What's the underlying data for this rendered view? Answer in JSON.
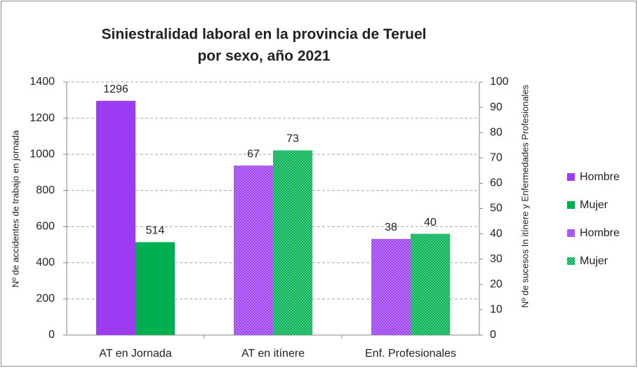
{
  "chart_data": {
    "type": "bar",
    "title": [
      "Siniestralidad laboral en la provincia de Teruel",
      "por sexo, año 2021"
    ],
    "y_label": "Nº de accidentes de trabajo en jornada",
    "y2_label": "Nº de sucesos In itínere y Enfermedades Profesionales",
    "categories": [
      "AT en Jornada",
      "AT en itínere",
      "Enf. Profesionales"
    ],
    "series": [
      {
        "name": "Hombre",
        "color": "#9b3cf2",
        "values": [
          1296,
          null,
          null
        ]
      },
      {
        "name": "Mujer",
        "color": "#00b050",
        "values": [
          514,
          null,
          null
        ]
      },
      {
        "name": "Hombre",
        "color": "#9b3cf2",
        "axis": "y2",
        "pattern": "dots",
        "values": [
          null,
          67,
          38
        ]
      },
      {
        "name": "Mujer",
        "color": "#00b050",
        "axis": "y2",
        "pattern": "dots",
        "values": [
          null,
          73,
          40
        ]
      }
    ],
    "ylim": [
      0,
      1400
    ],
    "yticks": [
      0,
      200,
      400,
      600,
      800,
      1000,
      1200,
      1400
    ],
    "y2lim": [
      0,
      100
    ],
    "y2ticks": [
      0,
      10,
      20,
      30,
      40,
      50,
      60,
      70,
      80,
      90,
      100
    ],
    "grid": true,
    "legend": "right"
  }
}
